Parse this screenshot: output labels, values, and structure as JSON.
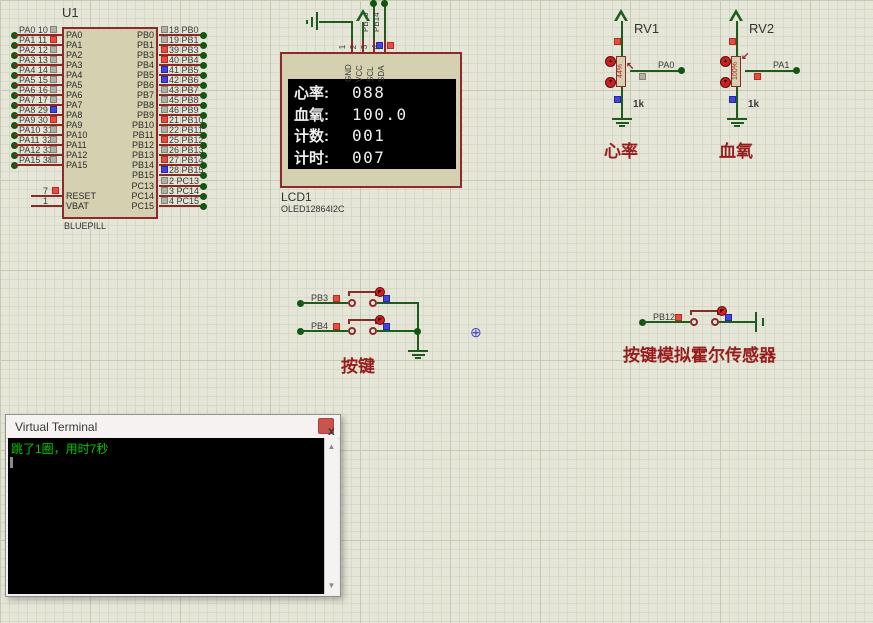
{
  "colors": {
    "wire_green": "#1d5c1d",
    "pin_red": "#8a2a25",
    "state_red": "#ea4a3f",
    "state_blue": "#4343e0",
    "state_gray": "#b0b0a4",
    "caption_red": "#971c1c",
    "terminal_green": "#00cc00"
  },
  "mcu": {
    "ref": "U1",
    "part": "BLUEPILL",
    "left_pins": [
      {
        "name": "PA0",
        "num": "10",
        "state": "gray"
      },
      {
        "name": "PA1",
        "num": "11",
        "state": "red"
      },
      {
        "name": "PA2",
        "num": "12",
        "state": "gray"
      },
      {
        "name": "PA3",
        "num": "13",
        "state": "gray"
      },
      {
        "name": "PA4",
        "num": "14",
        "state": "gray"
      },
      {
        "name": "PA5",
        "num": "15",
        "state": "gray"
      },
      {
        "name": "PA6",
        "num": "16",
        "state": "gray"
      },
      {
        "name": "PA7",
        "num": "17",
        "state": "gray"
      },
      {
        "name": "PA8",
        "num": "29",
        "state": "blue"
      },
      {
        "name": "PA9",
        "num": "30",
        "state": "red"
      },
      {
        "name": "PA10",
        "num": "31",
        "state": "gray"
      },
      {
        "name": "PA11",
        "num": "32",
        "state": "gray"
      },
      {
        "name": "PA12",
        "num": "33",
        "state": "gray"
      },
      {
        "name": "PA15",
        "num": "38",
        "state": "gray"
      }
    ],
    "right_pins": [
      {
        "name": "PB0",
        "num": "18",
        "state": "gray"
      },
      {
        "name": "PB1",
        "num": "19",
        "state": "gray"
      },
      {
        "name": "PB3",
        "num": "39",
        "state": "red"
      },
      {
        "name": "PB4",
        "num": "40",
        "state": "red"
      },
      {
        "name": "PB5",
        "num": "41",
        "state": "blue"
      },
      {
        "name": "PB6",
        "num": "42",
        "state": "blue"
      },
      {
        "name": "PB7",
        "num": "43",
        "state": "gray"
      },
      {
        "name": "PB8",
        "num": "45",
        "state": "gray"
      },
      {
        "name": "PB9",
        "num": "46",
        "state": "gray"
      },
      {
        "name": "PB10",
        "num": "21",
        "state": "red"
      },
      {
        "name": "PB11",
        "num": "22",
        "state": "gray"
      },
      {
        "name": "PB12",
        "num": "25",
        "state": "red"
      },
      {
        "name": "PB13",
        "num": "26",
        "state": "gray"
      },
      {
        "name": "PB14",
        "num": "27",
        "state": "red"
      },
      {
        "name": "PB15",
        "num": "28",
        "state": "blue"
      },
      {
        "name": "PC13",
        "num": "2",
        "state": "gray"
      },
      {
        "name": "PC14",
        "num": "3",
        "state": "gray"
      },
      {
        "name": "PC15",
        "num": "4",
        "state": "gray"
      }
    ],
    "power_pins": [
      {
        "name": "RESET",
        "num": "7",
        "state": "red"
      },
      {
        "name": "VBAT",
        "num": "1",
        "state": "none"
      }
    ]
  },
  "oled": {
    "ref": "LCD1",
    "part": "OLED12864I2C",
    "pins": [
      {
        "num": "1",
        "label": "GND",
        "state": "none",
        "net": ""
      },
      {
        "num": "2",
        "label": "VCC",
        "state": "none",
        "net": ""
      },
      {
        "num": "3",
        "label": "SCL",
        "state": "blue",
        "net": "PB15"
      },
      {
        "num": "4",
        "label": "SDA",
        "state": "red",
        "net": "PB14"
      }
    ],
    "screen": [
      {
        "label": "心率:",
        "value": "088"
      },
      {
        "label": "血氧:",
        "value": "100.0"
      },
      {
        "label": "计数:",
        "value": "001"
      },
      {
        "label": "计时:",
        "value": "007"
      }
    ]
  },
  "pots": [
    {
      "ref": "RV1",
      "value": "1k",
      "percent": "44%",
      "net": "PA0",
      "net_state": "gray",
      "caption": "心率"
    },
    {
      "ref": "RV2",
      "value": "1k",
      "percent": "100%",
      "net": "PA1",
      "net_state": "red",
      "caption": "血氧"
    }
  ],
  "push_buttons": {
    "caption": "按键",
    "rows": [
      {
        "net": "PB3",
        "state": "red"
      },
      {
        "net": "PB4",
        "state": "red"
      }
    ]
  },
  "hall_button": {
    "net": "PB12",
    "state": "red",
    "caption": "按键模拟霍尔传感器"
  },
  "terminal": {
    "title": "Virtual Terminal",
    "close_label": "x",
    "output": "跳了1圈，用时7秒"
  }
}
